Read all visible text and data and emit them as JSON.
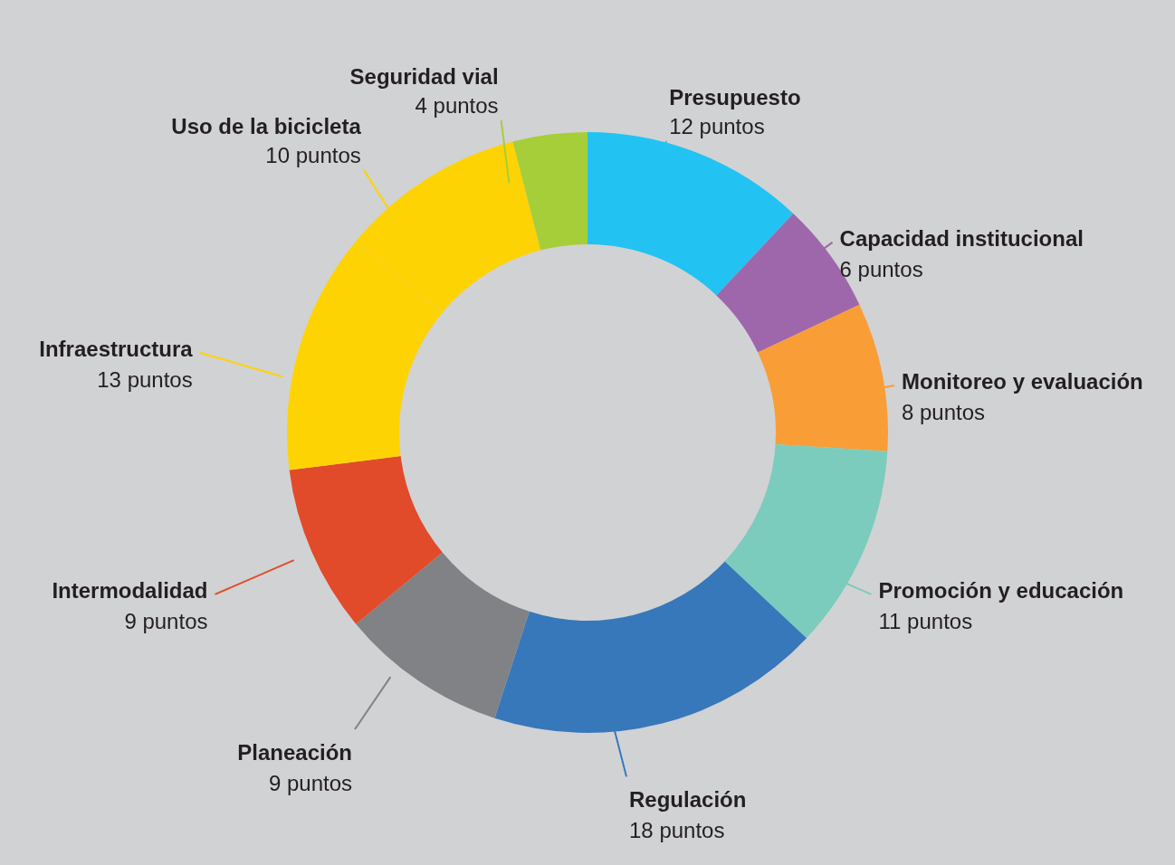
{
  "chart_data": {
    "type": "donut",
    "categories": [
      "Presupuesto",
      "Capacidad institucional",
      "Monitoreo y evaluación",
      "Promoción y educación",
      "Regulación",
      "Planeación",
      "Intermodalidad",
      "Infraestructura",
      "Uso de la bicicleta",
      "Seguridad vial"
    ],
    "values": [
      12,
      6,
      8,
      11,
      18,
      9,
      9,
      13,
      10,
      4
    ],
    "colors": [
      "#22c3f2",
      "#9e67ab",
      "#f99d36",
      "#7bccbd",
      "#3778bb",
      "#808285",
      "#e14b2a",
      "#fed303",
      "#fed303",
      "#a6ce39"
    ],
    "value_labels": [
      "12 puntos",
      "6 puntos",
      "8 puntos",
      "11 puntos",
      "18 puntos",
      "9 puntos",
      "9 puntos",
      "13 puntos",
      "10 puntos",
      "4 puntos"
    ]
  }
}
